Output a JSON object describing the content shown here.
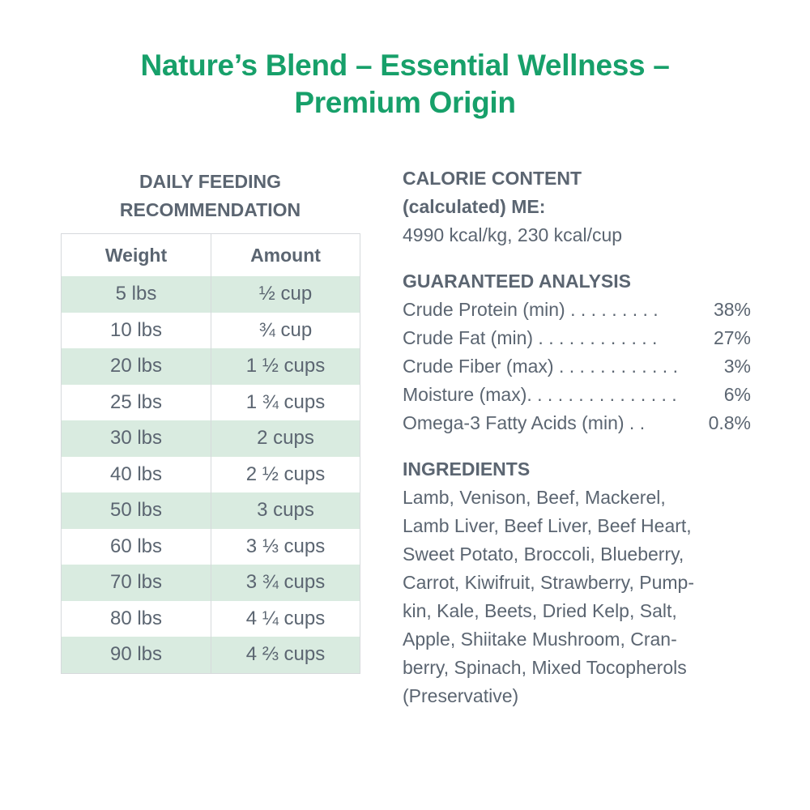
{
  "title": {
    "line1": "Nature’s Blend – Essential Wellness –",
    "line2": "Premium Origin"
  },
  "feeding": {
    "heading_line1": "DAILY FEEDING",
    "heading_line2": "RECOMMENDATION",
    "columns": [
      "Weight",
      "Amount"
    ],
    "rows": [
      [
        "5 lbs",
        "½ cup"
      ],
      [
        "10 lbs",
        "¾ cup"
      ],
      [
        "20 lbs",
        "1 ½ cups"
      ],
      [
        "25 lbs",
        "1 ¾ cups"
      ],
      [
        "30 lbs",
        "2 cups"
      ],
      [
        "40 lbs",
        "2 ½ cups"
      ],
      [
        "50 lbs",
        "3 cups"
      ],
      [
        "60 lbs",
        "3 ⅓ cups"
      ],
      [
        "70 lbs",
        "3 ¾ cups"
      ],
      [
        "80 lbs",
        "4 ¼ cups"
      ],
      [
        "90 lbs",
        "4 ⅔ cups"
      ]
    ]
  },
  "calorie": {
    "heading_line1": "CALORIE CONTENT",
    "heading_line2": "(calculated) ME:",
    "value": "4990 kcal/kg, 230 kcal/cup"
  },
  "analysis": {
    "heading": "GUARANTEED ANALYSIS",
    "items": [
      {
        "label": "Crude Protein (min) . . . . . . . . .",
        "value": "38%"
      },
      {
        "label": "Crude Fat (min) . . . . . . . . . . . .",
        "value": "27%"
      },
      {
        "label": "Crude Fiber (max) . . . . . . . . . . . .",
        "value": "3%"
      },
      {
        "label": "Moisture (max). . . . . . . . . . . . . . .",
        "value": "6%"
      },
      {
        "label": "Omega-3 Fatty Acids (min) . .",
        "value": "0.8%"
      }
    ]
  },
  "ingredients": {
    "heading": "INGREDIENTS",
    "lines": [
      "Lamb, Venison, Beef, Mackerel,",
      "Lamb Liver, Beef Liver, Beef Heart,",
      "Sweet Potato, Broccoli, Blueberry,",
      "Carrot, Kiwifruit, Strawberry, Pump-",
      "kin, Kale, Beets, Dried Kelp, Salt,",
      "Apple, Shiitake Mushroom, Cran-",
      "berry, Spinach, Mixed Tocopherols",
      "(Preservative)"
    ]
  },
  "colors": {
    "title": "#17a06a",
    "text": "#5b6571",
    "row_highlight": "#d9ebe0"
  }
}
